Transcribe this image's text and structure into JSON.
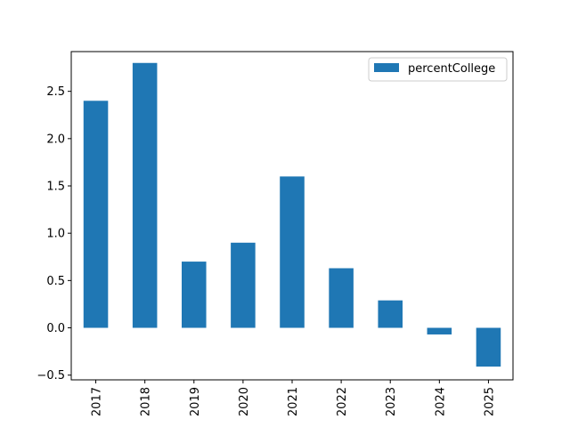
{
  "chart_data": {
    "type": "bar",
    "categories": [
      "2017",
      "2018",
      "2019",
      "2020",
      "2021",
      "2022",
      "2023",
      "2024",
      "2025"
    ],
    "series": [
      {
        "name": "percentCollege",
        "values": [
          2.4,
          2.8,
          0.7,
          0.9,
          1.6,
          0.63,
          0.29,
          -0.07,
          -0.41
        ]
      }
    ],
    "xlabel": "",
    "ylabel": "",
    "ylim": [
      -0.55,
      2.92
    ],
    "yticks": [
      -0.5,
      0.0,
      0.5,
      1.0,
      1.5,
      2.0,
      2.5
    ],
    "ytick_labels": [
      "−0.5",
      "0.0",
      "0.5",
      "1.0",
      "1.5",
      "2.0",
      "2.5"
    ],
    "grid": false,
    "legend_position": "upper right",
    "bar_color": "#1f77b4"
  }
}
